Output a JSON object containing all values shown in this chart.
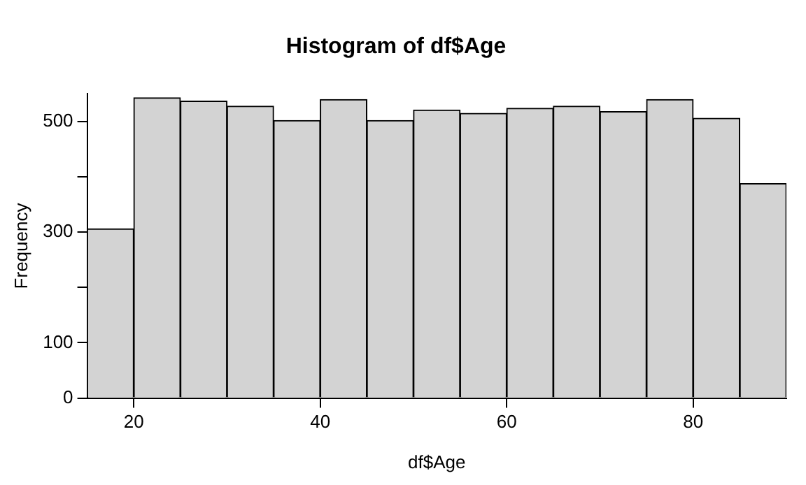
{
  "chart_data": {
    "type": "histogram",
    "title": "Histogram of df$Age",
    "xlabel": "df$Age",
    "ylabel": "Frequency",
    "bins": [
      15,
      20,
      25,
      30,
      35,
      40,
      45,
      50,
      55,
      60,
      65,
      70,
      75,
      80,
      85,
      90
    ],
    "values": [
      306,
      543,
      537,
      528,
      502,
      540,
      502,
      521,
      515,
      524,
      528,
      518,
      540,
      506,
      388
    ],
    "color": "#d3d3d3",
    "xlim": [
      15,
      90
    ],
    "xticks": [
      20,
      40,
      60,
      80
    ],
    "ylim": [
      0,
      550
    ],
    "yticks": [
      0,
      100,
      {
        "value": 200,
        "label": null
      },
      300,
      {
        "value": 400,
        "label": null
      },
      500
    ],
    "grid": false,
    "legend": false
  }
}
